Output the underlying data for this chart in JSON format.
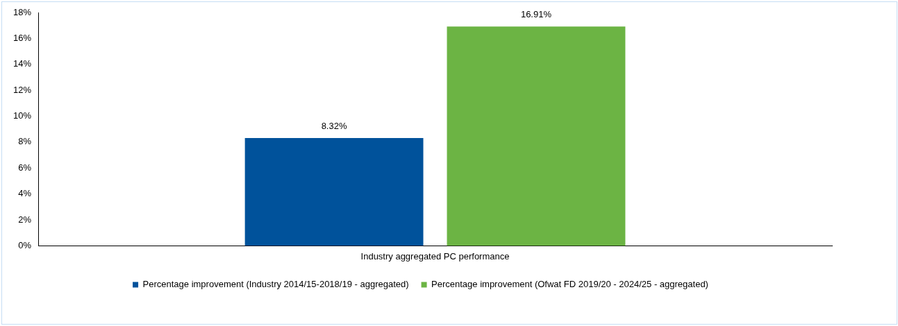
{
  "chart_data": {
    "type": "bar",
    "categories": [
      "Industry aggregated PC performance"
    ],
    "series": [
      {
        "name": "Percentage improvement (Industry 2014/15-2018/19 - aggregated)",
        "color": "#00529b",
        "values": [
          8.32
        ],
        "value_labels": [
          "8.32%"
        ]
      },
      {
        "name": "Percentage improvement (Ofwat FD 2019/20 - 2024/25 - aggregated)",
        "color": "#6cb444",
        "values": [
          16.91
        ],
        "value_labels": [
          "16.91%"
        ]
      }
    ],
    "ylim": [
      0,
      18
    ],
    "yticks": [
      {
        "value": 0,
        "label": "0%"
      },
      {
        "value": 2,
        "label": "2%"
      },
      {
        "value": 4,
        "label": "4%"
      },
      {
        "value": 6,
        "label": "6%"
      },
      {
        "value": 8,
        "label": "8%"
      },
      {
        "value": 10,
        "label": "10%"
      },
      {
        "value": 12,
        "label": "12%"
      },
      {
        "value": 14,
        "label": "14%"
      },
      {
        "value": 16,
        "label": "16%"
      },
      {
        "value": 18,
        "label": "18%"
      }
    ],
    "grid": false,
    "legend": "bottom"
  }
}
